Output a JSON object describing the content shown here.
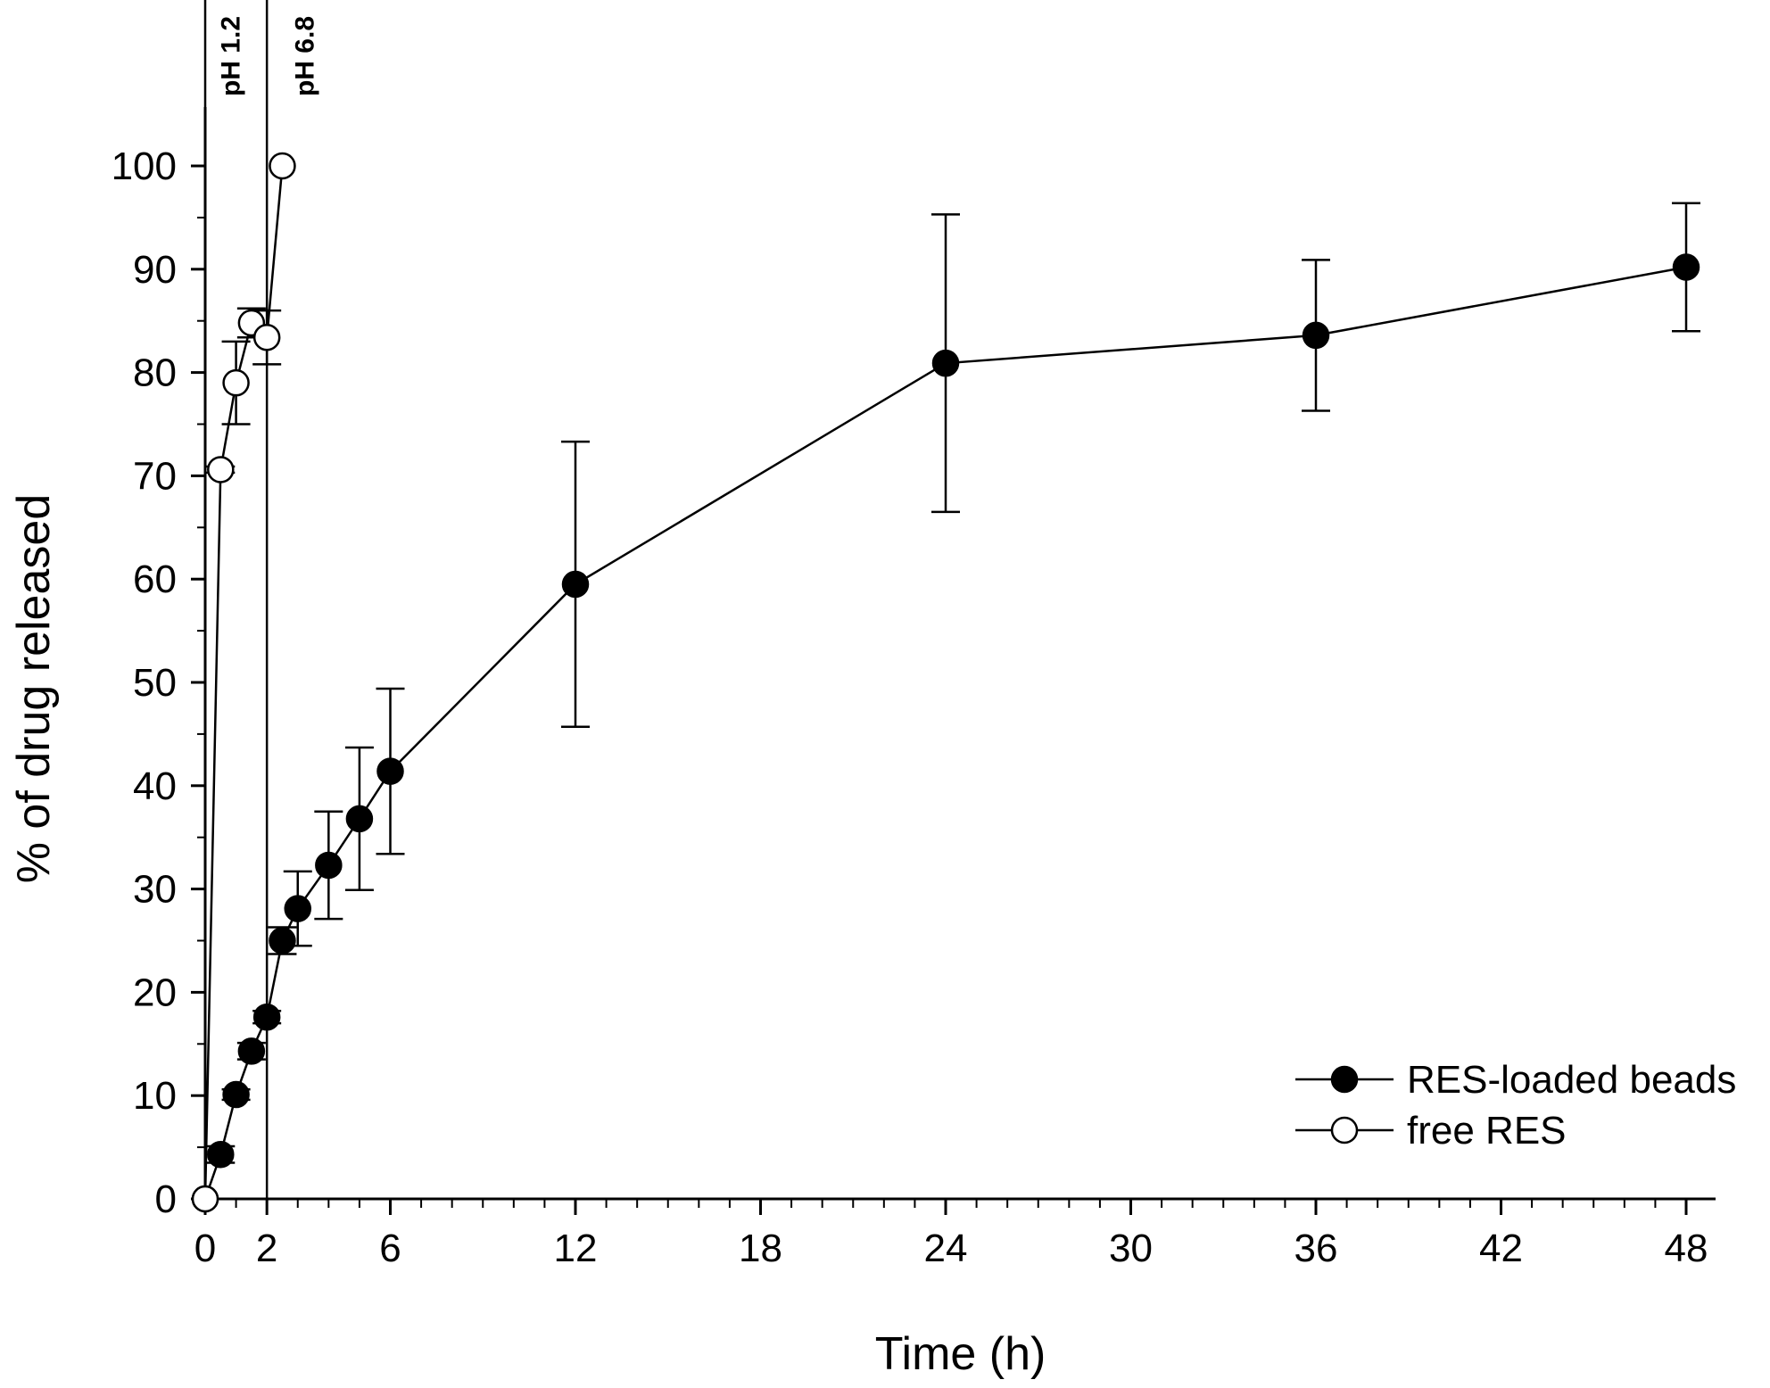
{
  "chart_data": {
    "type": "line",
    "title": "",
    "xlabel": "Time (h)",
    "ylabel": "% of drug released",
    "xlim": [
      0,
      49
    ],
    "ylim": [
      0,
      100
    ],
    "x_ticks": [
      0,
      2,
      6,
      12,
      18,
      24,
      30,
      36,
      42,
      48
    ],
    "x_tick_labels": [
      "0",
      "2",
      "6",
      "12",
      "18",
      "24",
      "30",
      "36",
      "42",
      "48"
    ],
    "x_minor_step": 1,
    "y_ticks": [
      0,
      10,
      20,
      30,
      40,
      50,
      60,
      70,
      80,
      90,
      100
    ],
    "y_tick_labels": [
      "0",
      "10",
      "20",
      "30",
      "40",
      "50",
      "60",
      "70",
      "80",
      "90",
      "100"
    ],
    "grid": false,
    "legend_position": "bottom-right",
    "annotations": [
      {
        "text": "pH 1.2",
        "x": 0.8
      },
      {
        "text": "pH 6.8",
        "x": 3.2
      }
    ],
    "vertical_lines": [
      0,
      2
    ],
    "series": [
      {
        "name": "RES-loaded beads",
        "marker": "filled-circle",
        "x": [
          0,
          0.5,
          1,
          1.5,
          2,
          2.5,
          3,
          4,
          5,
          6,
          12,
          24,
          36,
          48
        ],
        "y": [
          0,
          4.3,
          10.1,
          14.3,
          17.6,
          25.0,
          28.1,
          32.3,
          36.8,
          41.4,
          59.5,
          80.9,
          83.6,
          90.2
        ],
        "error": [
          0,
          0.8,
          0.5,
          0.8,
          0.6,
          1.3,
          3.6,
          5.2,
          6.9,
          8.0,
          13.8,
          14.4,
          7.3,
          6.2
        ]
      },
      {
        "name": "free RES",
        "marker": "open-circle",
        "x": [
          0,
          0.5,
          1,
          1.5,
          2,
          2.5
        ],
        "y": [
          0,
          70.6,
          79.0,
          84.8,
          83.4,
          100
        ],
        "error": [
          0,
          0.3,
          4.0,
          1.4,
          2.6,
          0
        ]
      }
    ],
    "colors": {
      "line": "#000000",
      "marker_fill_filled": "#000000",
      "marker_fill_open": "#ffffff"
    }
  }
}
